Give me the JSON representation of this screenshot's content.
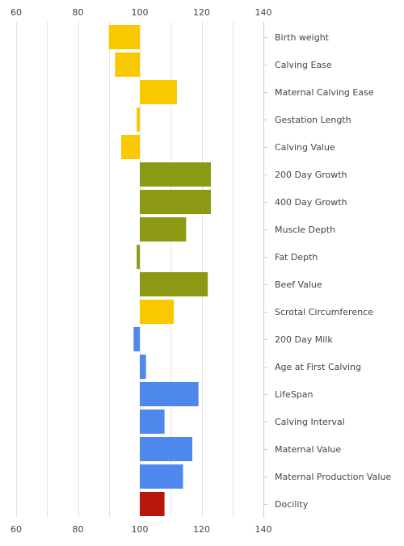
{
  "chart_data": {
    "type": "bar",
    "orientation": "horizontal",
    "baseline": 100,
    "xlim": [
      60,
      140
    ],
    "x_ticks": [
      60,
      80,
      100,
      120,
      140
    ],
    "x_tick_labels": [
      "60",
      "80",
      "100",
      "120",
      "140"
    ],
    "grid": true,
    "title": "",
    "xlabel": "",
    "ylabel": "",
    "categories": [
      "Birth weight",
      "Calving Ease",
      "Maternal Calving Ease",
      "Gestation Length",
      "Calving Value",
      "200 Day Growth",
      "400 Day Growth",
      "Muscle Depth",
      "Fat Depth",
      "Beef Value",
      "Scrotal Circumference",
      "200 Day Milk",
      "Age at First Calving",
      "LifeSpan",
      "Calving Interval",
      "Maternal Value",
      "Maternal Production Value",
      "Docility"
    ],
    "values": [
      90,
      92,
      112,
      99,
      94,
      123,
      123,
      115,
      99,
      122,
      111,
      98,
      102,
      119,
      108,
      117,
      114,
      108
    ],
    "colors": [
      "#f9c800",
      "#f9c800",
      "#f9c800",
      "#f9c800",
      "#f9c800",
      "#8b9a12",
      "#8b9a12",
      "#8b9a12",
      "#8b9a12",
      "#8b9a12",
      "#f9c800",
      "#4f88ed",
      "#4f88ed",
      "#4f88ed",
      "#4f88ed",
      "#4f88ed",
      "#4f88ed",
      "#b8180c"
    ]
  }
}
